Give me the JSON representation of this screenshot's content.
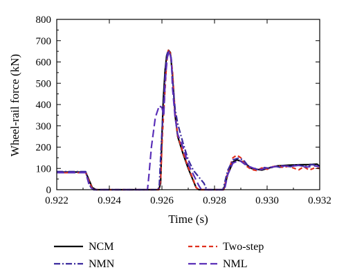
{
  "chart_data": {
    "type": "line",
    "xlabel": "Time (s)",
    "ylabel": "Wheel-rail force (kN)",
    "xlim": [
      0.922,
      0.932
    ],
    "ylim": [
      0,
      800
    ],
    "x_ticks": [
      "0.922",
      "0.924",
      "0.926",
      "0.928",
      "0.930",
      "0.932"
    ],
    "y_ticks": [
      "0",
      "100",
      "200",
      "300",
      "400",
      "500",
      "600",
      "700",
      "800"
    ],
    "grid": false,
    "legend_position": "below",
    "series": [
      {
        "name": "NCM",
        "color": "#000000",
        "dash": "solid",
        "points": [
          [
            0.922,
            83
          ],
          [
            0.9231,
            83
          ],
          [
            0.92335,
            10
          ],
          [
            0.9235,
            0
          ],
          [
            0.92588,
            0
          ],
          [
            0.92595,
            30
          ],
          [
            0.926,
            250
          ],
          [
            0.92605,
            420
          ],
          [
            0.92612,
            560
          ],
          [
            0.92618,
            630
          ],
          [
            0.92625,
            655
          ],
          [
            0.92632,
            645
          ],
          [
            0.9264,
            540
          ],
          [
            0.9265,
            350
          ],
          [
            0.9266,
            250
          ],
          [
            0.9268,
            170
          ],
          [
            0.927,
            100
          ],
          [
            0.9272,
            40
          ],
          [
            0.9273,
            10
          ],
          [
            0.9274,
            0
          ],
          [
            0.92835,
            0
          ],
          [
            0.9285,
            70
          ],
          [
            0.9287,
            130
          ],
          [
            0.92885,
            140
          ],
          [
            0.9291,
            130
          ],
          [
            0.9294,
            100
          ],
          [
            0.9298,
            92
          ],
          [
            0.93,
            100
          ],
          [
            0.9304,
            112
          ],
          [
            0.9308,
            115
          ],
          [
            0.9312,
            117
          ],
          [
            0.9316,
            118
          ],
          [
            0.9319,
            120
          ],
          [
            0.932,
            110
          ]
        ]
      },
      {
        "name": "Two-step",
        "color": "#e0301e",
        "dash": "dashed",
        "points": [
          [
            0.922,
            80
          ],
          [
            0.9231,
            80
          ],
          [
            0.92335,
            5
          ],
          [
            0.9235,
            0
          ],
          [
            0.92588,
            0
          ],
          [
            0.92595,
            40
          ],
          [
            0.92602,
            260
          ],
          [
            0.9261,
            430
          ],
          [
            0.92618,
            600
          ],
          [
            0.92625,
            660
          ],
          [
            0.92632,
            640
          ],
          [
            0.9264,
            560
          ],
          [
            0.9265,
            360
          ],
          [
            0.9266,
            255
          ],
          [
            0.9268,
            175
          ],
          [
            0.927,
            105
          ],
          [
            0.9272,
            45
          ],
          [
            0.9273,
            10
          ],
          [
            0.9274,
            0
          ],
          [
            0.92835,
            0
          ],
          [
            0.9285,
            80
          ],
          [
            0.9287,
            150
          ],
          [
            0.92885,
            162
          ],
          [
            0.929,
            150
          ],
          [
            0.9292,
            112
          ],
          [
            0.9294,
            95
          ],
          [
            0.9296,
            90
          ],
          [
            0.9298,
            102
          ],
          [
            0.93,
            96
          ],
          [
            0.9302,
            108
          ],
          [
            0.9304,
            112
          ],
          [
            0.9306,
            104
          ],
          [
            0.9308,
            110
          ],
          [
            0.931,
            102
          ],
          [
            0.9312,
            93
          ],
          [
            0.9314,
            108
          ],
          [
            0.9316,
            92
          ],
          [
            0.9318,
            102
          ],
          [
            0.932,
            100
          ]
        ]
      },
      {
        "name": "NMN",
        "color": "#3b2a9e",
        "dash": "dashdot",
        "points": [
          [
            0.922,
            85
          ],
          [
            0.9231,
            85
          ],
          [
            0.92325,
            20
          ],
          [
            0.9234,
            0
          ],
          [
            0.92585,
            0
          ],
          [
            0.9259,
            20
          ],
          [
            0.92595,
            150
          ],
          [
            0.926,
            270
          ],
          [
            0.92607,
            420
          ],
          [
            0.92614,
            570
          ],
          [
            0.9262,
            640
          ],
          [
            0.92628,
            650
          ],
          [
            0.92635,
            620
          ],
          [
            0.9264,
            520
          ],
          [
            0.9265,
            380
          ],
          [
            0.9266,
            310
          ],
          [
            0.9268,
            220
          ],
          [
            0.927,
            140
          ],
          [
            0.9272,
            90
          ],
          [
            0.9274,
            60
          ],
          [
            0.9276,
            30
          ],
          [
            0.9277,
            0
          ],
          [
            0.92832,
            0
          ],
          [
            0.9285,
            90
          ],
          [
            0.9287,
            140
          ],
          [
            0.9289,
            148
          ],
          [
            0.9291,
            140
          ],
          [
            0.9293,
            108
          ],
          [
            0.9295,
            100
          ],
          [
            0.9297,
            92
          ],
          [
            0.9299,
            104
          ],
          [
            0.9301,
            100
          ],
          [
            0.9303,
            110
          ],
          [
            0.9305,
            105
          ],
          [
            0.9307,
            112
          ],
          [
            0.9309,
            108
          ],
          [
            0.9311,
            118
          ],
          [
            0.9313,
            112
          ],
          [
            0.9315,
            110
          ],
          [
            0.9317,
            118
          ],
          [
            0.9319,
            114
          ],
          [
            0.932,
            110
          ]
        ]
      },
      {
        "name": "NML",
        "color": "#5a2fb8",
        "dash": "longdash",
        "points": [
          [
            0.922,
            80
          ],
          [
            0.9231,
            80
          ],
          [
            0.92325,
            15
          ],
          [
            0.9234,
            0
          ],
          [
            0.92545,
            0
          ],
          [
            0.9255,
            60
          ],
          [
            0.9256,
            200
          ],
          [
            0.92575,
            340
          ],
          [
            0.9259,
            395
          ],
          [
            0.926,
            385
          ],
          [
            0.92607,
            350
          ],
          [
            0.92612,
            500
          ],
          [
            0.9262,
            620
          ],
          [
            0.92628,
            650
          ],
          [
            0.92636,
            610
          ],
          [
            0.9264,
            480
          ],
          [
            0.9265,
            340
          ],
          [
            0.9266,
            260
          ],
          [
            0.9268,
            200
          ],
          [
            0.927,
            120
          ],
          [
            0.9272,
            70
          ],
          [
            0.9274,
            20
          ],
          [
            0.9275,
            0
          ],
          [
            0.92838,
            0
          ],
          [
            0.9285,
            70
          ],
          [
            0.9287,
            125
          ],
          [
            0.92895,
            138
          ],
          [
            0.9292,
            115
          ],
          [
            0.9295,
            100
          ],
          [
            0.9298,
            95
          ],
          [
            0.93,
            104
          ],
          [
            0.9303,
            108
          ],
          [
            0.9306,
            112
          ],
          [
            0.9309,
            110
          ],
          [
            0.9312,
            114
          ],
          [
            0.9315,
            106
          ],
          [
            0.9318,
            112
          ],
          [
            0.932,
            108
          ]
        ]
      }
    ]
  }
}
